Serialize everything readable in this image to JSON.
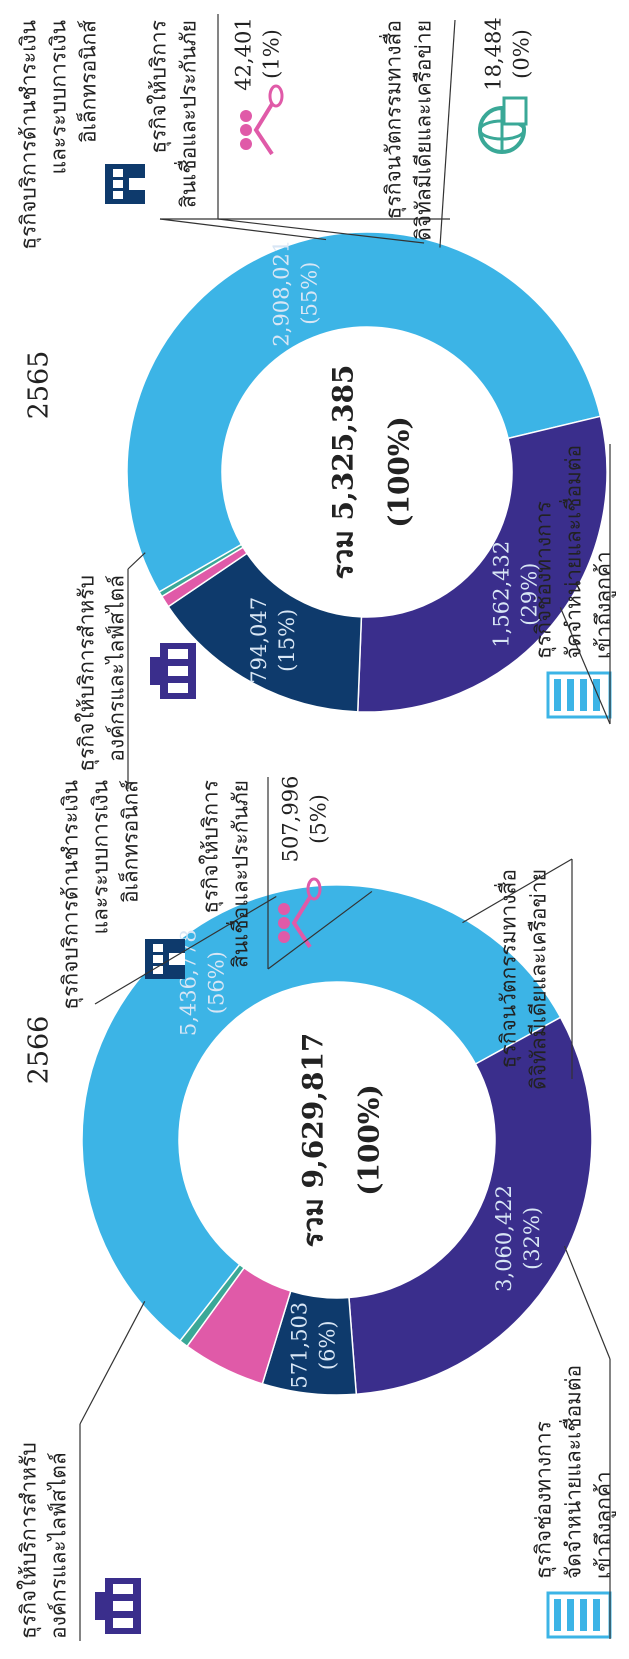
{
  "chart_data": [
    {
      "type": "donut",
      "title": "2566",
      "categories": [
        [
          "ธุรกิจช่องทางการ",
          "จัดจำหน่ายและเชื่อมต่อ",
          "เข้าถึงลูกค้า"
        ],
        [
          "ธุรกิจให้บริการสำหรับ",
          "องค์กรและไลฟ์สไตล์"
        ],
        [
          "ธุรกิจบริการด้านชำระเงิน",
          "และระบบการเงิน",
          "อิเล็กทรอนิกส์"
        ],
        [
          "ธุรกิจให้บริการ",
          "สินเชื่อและประกันภัย"
        ],
        [
          "ธุรกิจนวัตกรรมทางสื่อ",
          "ดิจิทัลมีเดียและเครือข่าย"
        ]
      ],
      "values": [
        5436778,
        3060422,
        571503,
        507996,
        53118
      ],
      "value_labels": [
        [
          "5,436,778",
          "(56%)"
        ],
        [
          "3,060,422",
          "(32%)"
        ],
        [
          "571,503",
          "(6%)"
        ],
        [
          "507,996",
          "(5%)"
        ],
        null
      ],
      "colors": [
        "#3cb4e6",
        "#3a2e8c",
        "#0e3a6c",
        "#e05aa8",
        "#3aa897"
      ],
      "total_label": [
        "รวม  9,629,817",
        "(100%)"
      ]
    },
    {
      "type": "donut",
      "title": "2565",
      "categories": [
        [
          "ธุรกิจช่องทางการ",
          "จัดจำหน่ายและเชื่อมต่อ",
          "เข้าถึงลูกค้า"
        ],
        [
          "ธุรกิจให้บริการสำหรับ",
          "องค์กรและไลฟ์สไตล์"
        ],
        [
          "ธุรกิจบริการด้านชำระเงิน",
          "และระบบการเงิน",
          "อิเล็กทรอนิกส์"
        ],
        [
          "ธุรกิจให้บริการ",
          "สินเชื่อและประกันภัย"
        ],
        [
          "ธุรกิจนวัตกรรมทางสื่อ",
          "ดิจิทัลมีเดียและเครือข่าย"
        ]
      ],
      "values": [
        2908021,
        1562432,
        794047,
        42401,
        18484
      ],
      "value_labels": [
        [
          "2,908,021",
          "(55%)"
        ],
        [
          "1,562,432",
          "(29%)"
        ],
        [
          "794,047",
          "(15%)"
        ],
        [
          "42,401",
          "(1%)"
        ],
        [
          "18,484",
          "(0%)"
        ]
      ],
      "colors": [
        "#3cb4e6",
        "#3a2e8c",
        "#0e3a6c",
        "#e05aa8",
        "#3aa897"
      ],
      "total_label": [
        "รวม 5,325,385",
        "(100%)"
      ]
    }
  ]
}
